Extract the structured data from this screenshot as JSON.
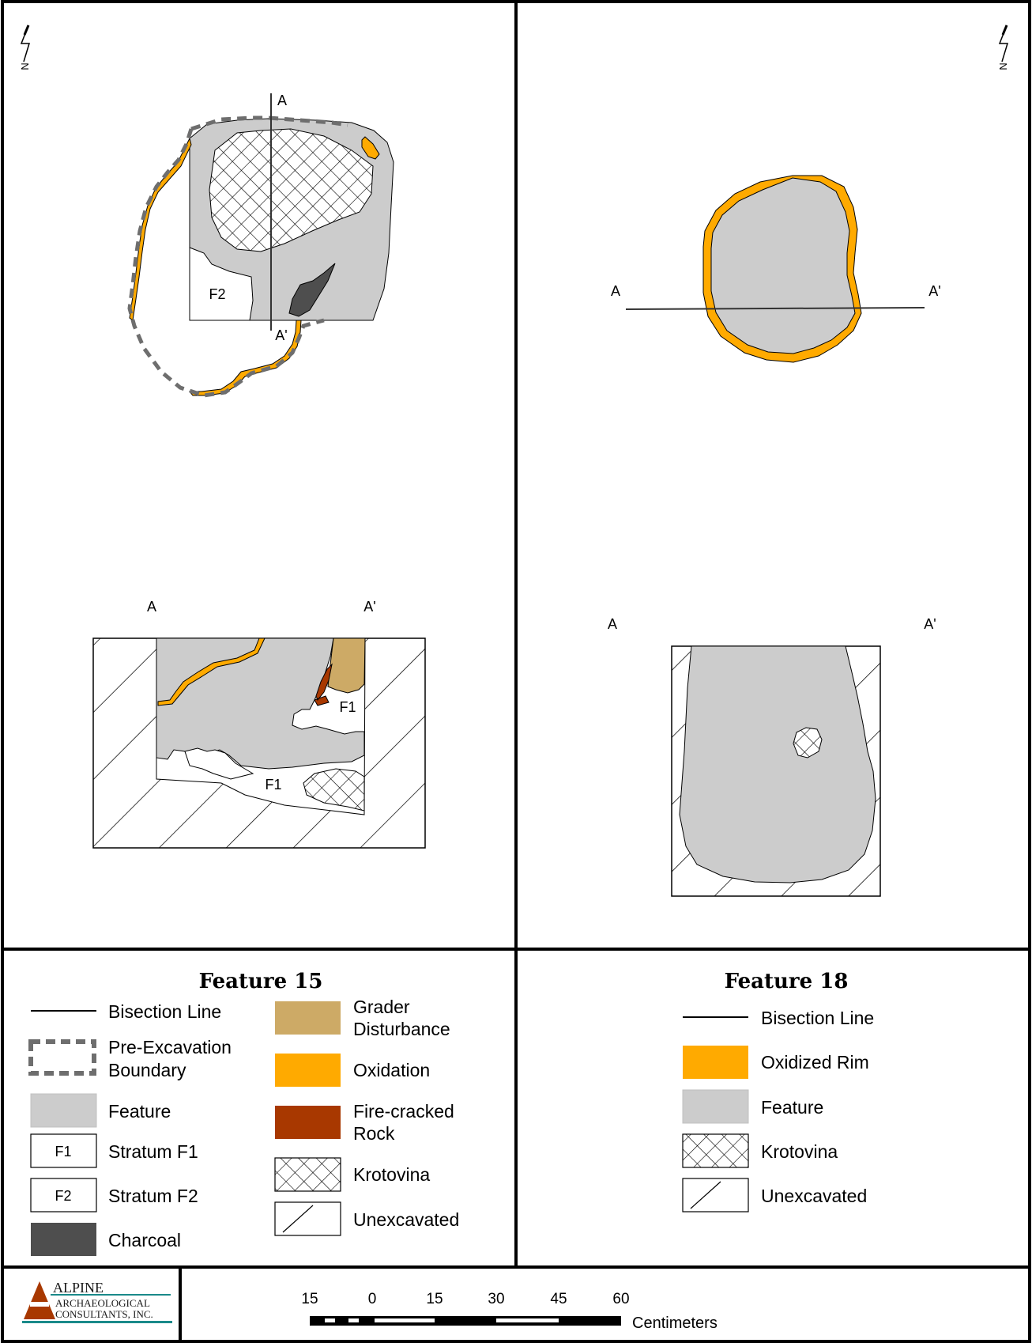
{
  "colors": {
    "feature": "#cccccc",
    "oxidation": "#ffaa00",
    "grader": "#cdaa66",
    "fire_cracked_rock": "#a83800",
    "charcoal": "#4e4e4e",
    "boundary_dash": "#6e6e6e",
    "logo_red": "#a83800",
    "logo_teal": "#1a8a8a"
  },
  "north_arrow_label": "N",
  "feature15": {
    "plan": {
      "a_label": "A",
      "a_prime_label": "A'",
      "stratum_label": "F2"
    },
    "profile": {
      "a_label": "A",
      "a_prime_label": "A'",
      "stratum_label_upper": "F1",
      "stratum_label_lower": "F1"
    },
    "legend": {
      "title": "Feature 15",
      "items_left": [
        {
          "key": "bisection",
          "label": "Bisection Line"
        },
        {
          "key": "boundary",
          "label": [
            "Pre-Excavation",
            "Boundary"
          ]
        },
        {
          "key": "feature",
          "label": "Feature"
        },
        {
          "key": "f1",
          "swatch_text": "F1",
          "label": "Stratum F1"
        },
        {
          "key": "f2",
          "swatch_text": "F2",
          "label": "Stratum F2"
        },
        {
          "key": "charcoal",
          "label": "Charcoal"
        }
      ],
      "items_right": [
        {
          "key": "grader",
          "label": [
            "Grader",
            "Disturbance"
          ]
        },
        {
          "key": "oxidation",
          "label": "Oxidation"
        },
        {
          "key": "fcr",
          "label": [
            "Fire-cracked",
            "Rock"
          ]
        },
        {
          "key": "krotovina",
          "label": "Krotovina"
        },
        {
          "key": "unexcavated",
          "label": "Unexcavated"
        }
      ]
    }
  },
  "feature18": {
    "plan": {
      "a_label": "A",
      "a_prime_label": "A'"
    },
    "profile": {
      "a_label": "A",
      "a_prime_label": "A'"
    },
    "legend": {
      "title": "Feature 18",
      "items": [
        {
          "key": "bisection",
          "label": "Bisection Line"
        },
        {
          "key": "oxidized_rim",
          "label": "Oxidized Rim"
        },
        {
          "key": "feature",
          "label": "Feature"
        },
        {
          "key": "krotovina",
          "label": "Krotovina"
        },
        {
          "key": "unexcavated",
          "label": "Unexcavated"
        }
      ]
    }
  },
  "logo": {
    "line1": "ALPINE",
    "line2": "ARCHAEOLOGICAL",
    "line3": "CONSULTANTS, INC."
  },
  "scale_bar": {
    "tick_labels": [
      "15",
      "0",
      "15",
      "30",
      "45",
      "60"
    ],
    "unit": "Centimeters"
  }
}
